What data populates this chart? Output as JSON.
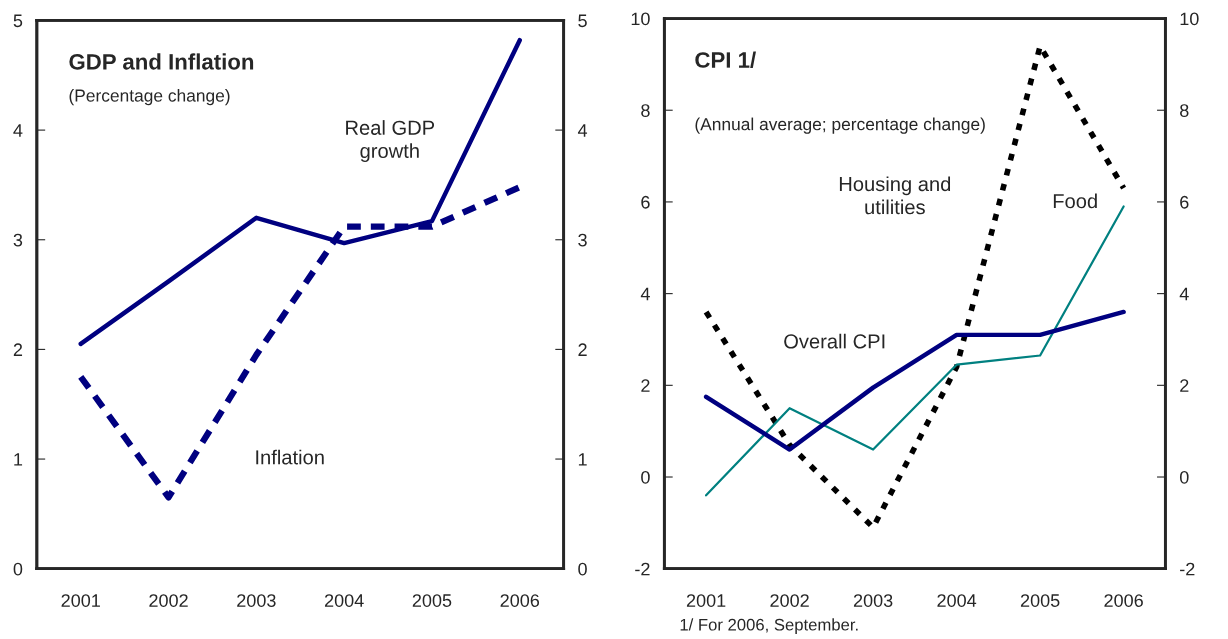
{
  "chart_data": [
    {
      "type": "line",
      "title": "GDP and Inflation",
      "subtitle": "(Percentage change)",
      "categories": [
        "2001",
        "2002",
        "2003",
        "2004",
        "2005",
        "2006"
      ],
      "series": [
        {
          "name": "Real GDP\ngrowth",
          "color": "#000080",
          "line_style": "solid",
          "values": [
            2.05,
            2.62,
            3.2,
            2.97,
            3.17,
            4.82
          ]
        },
        {
          "name": "Inflation",
          "color": "#000080",
          "line_style": "dashed",
          "values": [
            1.75,
            0.65,
            1.95,
            3.12,
            3.12,
            3.48
          ]
        }
      ],
      "ylim": [
        0,
        5
      ],
      "yticks": [
        0,
        1,
        2,
        3,
        4,
        5
      ],
      "y2lim": [
        0,
        5
      ],
      "y2ticks": [
        0,
        1,
        2,
        3,
        4,
        5
      ],
      "grid": false,
      "legend": false
    },
    {
      "type": "line",
      "title": "CPI 1/",
      "subtitle": "(Annual average; percentage change)",
      "categories": [
        "2001",
        "2002",
        "2003",
        "2004",
        "2005",
        "2006"
      ],
      "series": [
        {
          "name": "Housing and\nutilities",
          "color": "#000000",
          "line_style": "dotted",
          "values": [
            3.6,
            0.7,
            -1.1,
            2.4,
            9.4,
            6.3
          ]
        },
        {
          "name": "Food",
          "color": "#008080",
          "line_style": "solid",
          "values": [
            -0.4,
            1.5,
            0.6,
            2.45,
            2.65,
            5.9
          ]
        },
        {
          "name": "Overall CPI",
          "color": "#000080",
          "line_style": "solid",
          "values": [
            1.75,
            0.6,
            1.95,
            3.1,
            3.1,
            3.6
          ]
        }
      ],
      "annotations": [
        "1/ For 2006, September."
      ],
      "ylim": [
        -2,
        10
      ],
      "yticks": [
        -2,
        0,
        2,
        4,
        6,
        8,
        10
      ],
      "y2lim": [
        -2,
        10
      ],
      "y2ticks": [
        -2,
        0,
        2,
        4,
        6,
        8,
        10
      ],
      "grid": false,
      "legend": false
    }
  ]
}
